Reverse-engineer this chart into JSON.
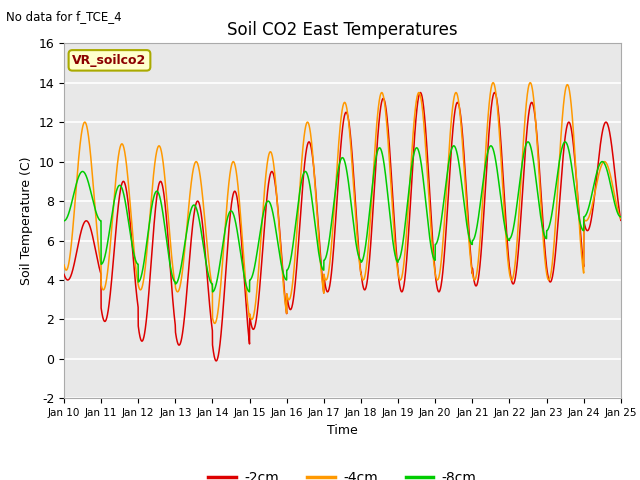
{
  "title": "Soil CO2 East Temperatures",
  "xlabel": "Time",
  "ylabel": "Soil Temperature (C)",
  "top_left_text": "No data for f_TCE_4",
  "legend_box_text": "VR_soilco2",
  "ylim": [
    -2,
    16
  ],
  "xlim": [
    0,
    15
  ],
  "colors": {
    "2cm": "#dd0000",
    "4cm": "#ff9900",
    "8cm": "#00cc00"
  },
  "bg_color": "#e8e8e8",
  "legend_entries": [
    "-2cm",
    "-4cm",
    "-8cm"
  ],
  "xtick_labels": [
    "Jan 10",
    "Jan 11",
    "Jan 12",
    "Jan 13",
    "Jan 14",
    "Jan 15",
    "Jan 16",
    "Jan 17",
    "Jan 18",
    "Jan 19",
    "Jan 20",
    "Jan 21",
    "Jan 22",
    "Jan 23",
    "Jan 24",
    "Jan 25"
  ],
  "ytick_values": [
    -2,
    0,
    2,
    4,
    6,
    8,
    10,
    12,
    14,
    16
  ],
  "red_peaks": [
    7,
    9,
    9,
    8,
    8.5,
    9.5,
    11,
    12.5,
    13.2,
    13.5,
    13.0,
    13.5,
    13.0,
    12.0,
    12.0
  ],
  "red_troughs": [
    4,
    1.9,
    0.9,
    0.7,
    -0.1,
    1.5,
    2.5,
    3.4,
    3.5,
    3.4,
    3.4,
    3.7,
    3.8,
    3.9,
    6.5
  ],
  "orange_peaks": [
    12.0,
    10.9,
    10.8,
    10.0,
    10.0,
    10.5,
    12.0,
    13.0,
    13.5,
    13.5,
    13.5,
    14.0,
    14.0,
    13.9,
    10.0
  ],
  "orange_troughs": [
    4.5,
    3.5,
    3.5,
    3.4,
    1.8,
    2.0,
    3.0,
    4.0,
    4.0,
    4.0,
    4.0,
    4.0,
    4.0,
    4.0,
    7.0
  ],
  "green_peaks": [
    9.5,
    8.8,
    8.5,
    7.8,
    7.5,
    8.0,
    9.5,
    10.2,
    10.7,
    10.7,
    10.8,
    10.8,
    11.0,
    11.0,
    10.0
  ],
  "green_troughs": [
    7.0,
    4.8,
    3.9,
    3.8,
    3.4,
    4.0,
    4.5,
    5.0,
    4.9,
    5.0,
    5.8,
    6.0,
    6.1,
    6.5,
    7.2
  ],
  "red_phase": 0.0,
  "orange_phase": 0.04,
  "green_phase": 0.1
}
